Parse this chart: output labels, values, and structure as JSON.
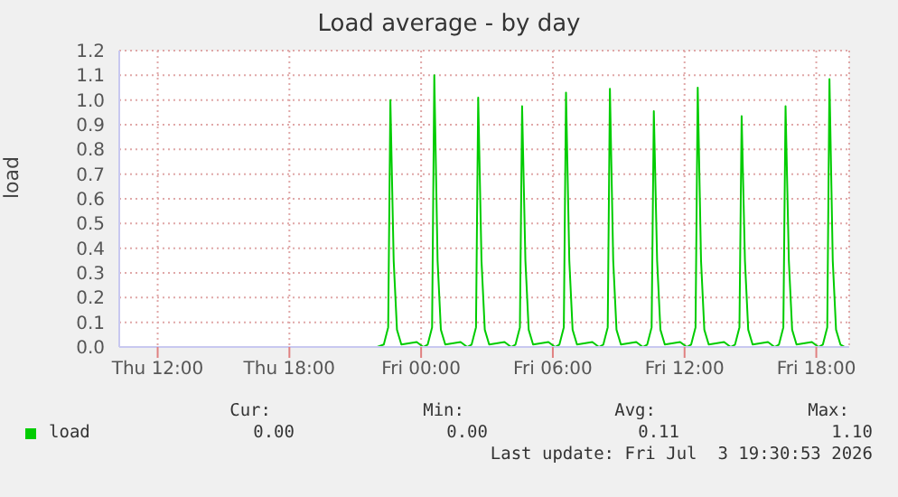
{
  "chart_data": {
    "type": "line",
    "title": "Load average - by day",
    "ylabel": "load",
    "xlim": [
      "2026-07-02T10:15",
      "2026-07-03T19:30"
    ],
    "xticks": [
      {
        "value": "2026-07-02T12:00",
        "label": "Thu 12:00"
      },
      {
        "value": "2026-07-02T18:00",
        "label": "Thu 18:00"
      },
      {
        "value": "2026-07-03T00:00",
        "label": "Fri 00:00"
      },
      {
        "value": "2026-07-03T06:00",
        "label": "Fri 06:00"
      },
      {
        "value": "2026-07-03T12:00",
        "label": "Fri 12:00"
      },
      {
        "value": "2026-07-03T18:00",
        "label": "Fri 18:00"
      }
    ],
    "ylim": [
      0,
      1.2
    ],
    "yticks": [
      {
        "value": 0,
        "label": "0.0"
      },
      {
        "value": 0.1,
        "label": "0.1"
      },
      {
        "value": 0.2,
        "label": "0.2"
      },
      {
        "value": 0.3,
        "label": "0.3"
      },
      {
        "value": 0.4,
        "label": "0.4"
      },
      {
        "value": 0.5,
        "label": "0.5"
      },
      {
        "value": 0.6,
        "label": "0.6"
      },
      {
        "value": 0.7,
        "label": "0.7"
      },
      {
        "value": 0.8,
        "label": "0.8"
      },
      {
        "value": 0.9,
        "label": "0.9"
      },
      {
        "value": 1.0,
        "label": "1.0"
      },
      {
        "value": 1.1,
        "label": "1.1"
      },
      {
        "value": 1.2,
        "label": "1.2"
      }
    ],
    "grid": true,
    "legend": "bottom",
    "marker": "none",
    "line_style": "solid",
    "series": [
      {
        "name": "load",
        "color": "#00cc00",
        "x": [
          "2026-07-02T21:12",
          "2026-07-02T22:00",
          "2026-07-02T22:18",
          "2026-07-02T22:30",
          "2026-07-02T22:36",
          "2026-07-02T22:45",
          "2026-07-02T22:54",
          "2026-07-02T23:06",
          "2026-07-02T23:48",
          "2026-07-03T00:06",
          "2026-07-03T00:18",
          "2026-07-03T00:30",
          "2026-07-03T00:36",
          "2026-07-03T00:45",
          "2026-07-03T00:54",
          "2026-07-03T01:06",
          "2026-07-03T01:48",
          "2026-07-03T02:06",
          "2026-07-03T02:18",
          "2026-07-03T02:30",
          "2026-07-03T02:36",
          "2026-07-03T02:45",
          "2026-07-03T02:54",
          "2026-07-03T03:06",
          "2026-07-03T03:48",
          "2026-07-03T04:06",
          "2026-07-03T04:18",
          "2026-07-03T04:30",
          "2026-07-03T04:36",
          "2026-07-03T04:45",
          "2026-07-03T04:54",
          "2026-07-03T05:06",
          "2026-07-03T05:48",
          "2026-07-03T06:06",
          "2026-07-03T06:18",
          "2026-07-03T06:30",
          "2026-07-03T06:36",
          "2026-07-03T06:45",
          "2026-07-03T06:54",
          "2026-07-03T07:06",
          "2026-07-03T07:48",
          "2026-07-03T08:06",
          "2026-07-03T08:18",
          "2026-07-03T08:30",
          "2026-07-03T08:36",
          "2026-07-03T08:45",
          "2026-07-03T08:54",
          "2026-07-03T09:06",
          "2026-07-03T09:48",
          "2026-07-03T10:06",
          "2026-07-03T10:18",
          "2026-07-03T10:30",
          "2026-07-03T10:36",
          "2026-07-03T10:45",
          "2026-07-03T10:54",
          "2026-07-03T11:06",
          "2026-07-03T11:48",
          "2026-07-03T12:06",
          "2026-07-03T12:18",
          "2026-07-03T12:30",
          "2026-07-03T12:36",
          "2026-07-03T12:45",
          "2026-07-03T12:54",
          "2026-07-03T13:06",
          "2026-07-03T13:48",
          "2026-07-03T14:06",
          "2026-07-03T14:18",
          "2026-07-03T14:30",
          "2026-07-03T14:36",
          "2026-07-03T14:45",
          "2026-07-03T14:54",
          "2026-07-03T15:06",
          "2026-07-03T15:48",
          "2026-07-03T16:06",
          "2026-07-03T16:18",
          "2026-07-03T16:30",
          "2026-07-03T16:36",
          "2026-07-03T16:45",
          "2026-07-03T16:54",
          "2026-07-03T17:06",
          "2026-07-03T17:48",
          "2026-07-03T18:06",
          "2026-07-03T18:18",
          "2026-07-03T18:30",
          "2026-07-03T18:36",
          "2026-07-03T18:45",
          "2026-07-03T18:54",
          "2026-07-03T19:06",
          "2026-07-03T19:18"
        ],
        "values": [
          0,
          0,
          0.01,
          0.08,
          1.0,
          0.35,
          0.07,
          0.01,
          0.02,
          0,
          0.01,
          0.08,
          1.1,
          0.35,
          0.07,
          0.01,
          0.02,
          0,
          0.01,
          0.08,
          1.01,
          0.35,
          0.07,
          0.01,
          0.02,
          0,
          0.01,
          0.08,
          0.975,
          0.35,
          0.07,
          0.01,
          0.02,
          0,
          0.01,
          0.08,
          1.03,
          0.35,
          0.07,
          0.01,
          0.02,
          0,
          0.01,
          0.08,
          1.045,
          0.35,
          0.07,
          0.01,
          0.02,
          0,
          0.01,
          0.08,
          0.955,
          0.35,
          0.07,
          0.01,
          0.02,
          0,
          0.01,
          0.08,
          1.05,
          0.35,
          0.07,
          0.01,
          0.02,
          0,
          0.01,
          0.08,
          0.935,
          0.35,
          0.07,
          0.01,
          0.02,
          0,
          0.01,
          0.08,
          0.975,
          0.35,
          0.07,
          0.01,
          0.02,
          0,
          0.01,
          0.08,
          1.085,
          0.35,
          0.07,
          0.01,
          0
        ]
      }
    ],
    "annotations": [
      "Cur:",
      "Min:",
      "Avg:",
      "Max:",
      "0.00",
      "0.00",
      "0.11",
      "1.10",
      "Last update: Fri Jul  3 19:30:53 2026"
    ]
  }
}
